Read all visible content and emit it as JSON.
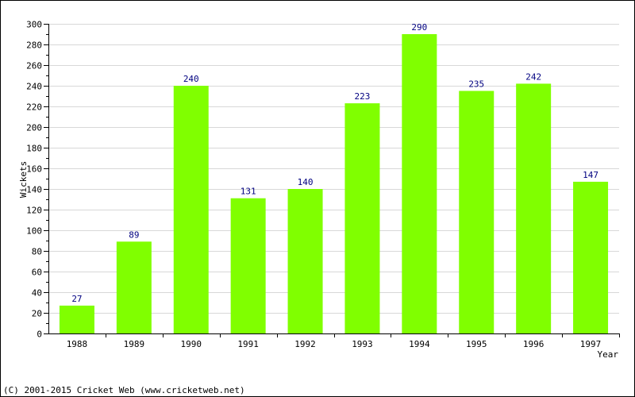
{
  "chart_data": {
    "type": "bar",
    "categories": [
      "1988",
      "1989",
      "1990",
      "1991",
      "1992",
      "1993",
      "1994",
      "1995",
      "1996",
      "1997"
    ],
    "values": [
      27,
      89,
      240,
      131,
      140,
      223,
      290,
      235,
      242,
      147
    ],
    "title": "",
    "xlabel": "Year",
    "ylabel": "Wickets",
    "ylim": [
      0,
      300
    ],
    "yticks": [
      0,
      20,
      40,
      60,
      80,
      100,
      120,
      140,
      160,
      180,
      200,
      220,
      240,
      260,
      280,
      300
    ],
    "grid": true,
    "bar_color": "#80ff00",
    "label_color": "#000080"
  },
  "footer": "(C) 2001-2015 Cricket Web (www.cricketweb.net)"
}
